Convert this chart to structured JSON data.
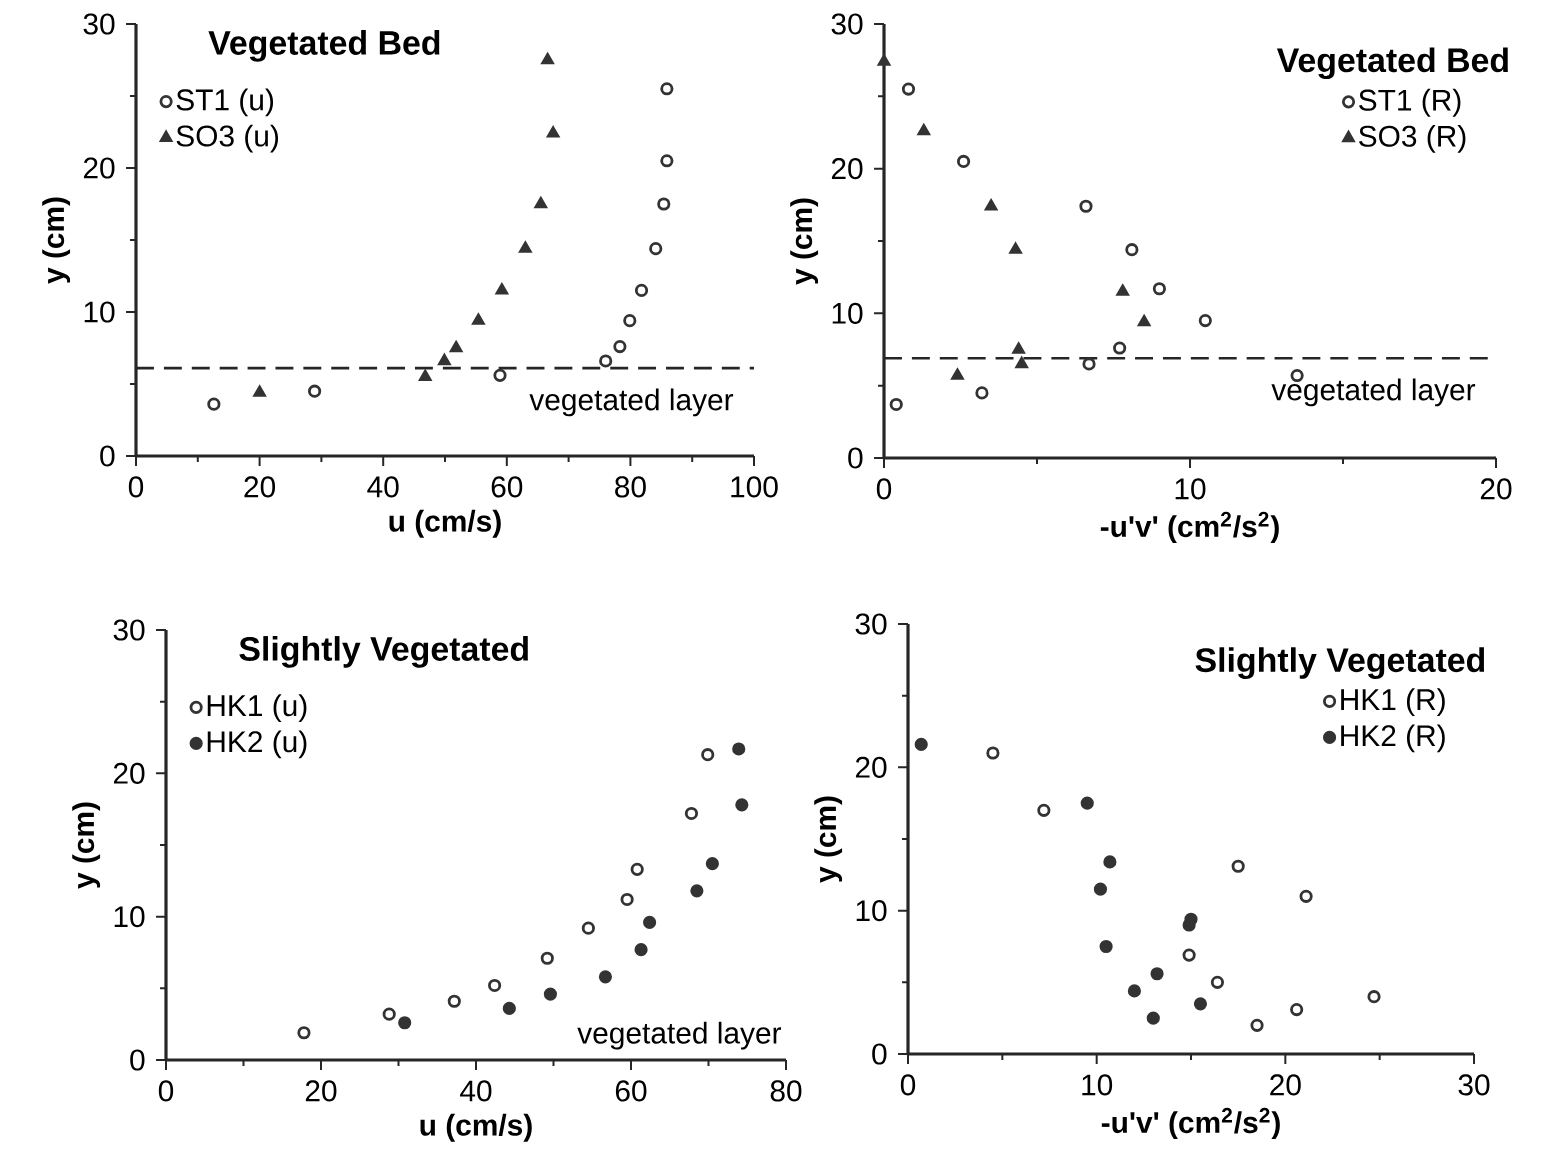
{
  "chart_data": [
    {
      "type": "scatter",
      "title": "Vegetated  Bed",
      "xlabel": "u  (cm/s)",
      "ylabel": "y (cm)",
      "xlim": [
        0,
        100
      ],
      "ylim": [
        0,
        30
      ],
      "xticks": [
        0,
        20,
        40,
        60,
        80,
        100
      ],
      "yticks": [
        0,
        10,
        20,
        30
      ],
      "legend": "top left",
      "grid": false,
      "ref_lines": [
        {
          "axis": "y",
          "value": 6.1,
          "label": "vegetated layer",
          "line_style": "dashed"
        }
      ],
      "series": [
        {
          "name": "ST1 (u)",
          "color": "#333333",
          "marker": "circle-open",
          "x": [
            12.6,
            28.9,
            58.9,
            76.0,
            78.3,
            79.9,
            81.8,
            84.1,
            85.4,
            85.9,
            85.9
          ],
          "values": [
            3.6,
            4.5,
            5.6,
            6.6,
            7.6,
            9.4,
            11.5,
            14.4,
            17.5,
            20.5,
            25.5
          ]
        },
        {
          "name": "SO3 (u)",
          "color": "#333333",
          "marker": "triangle",
          "x": [
            20.0,
            46.8,
            49.9,
            51.8,
            55.4,
            59.2,
            63.0,
            65.5,
            67.5,
            66.6
          ],
          "values": [
            4.4,
            5.5,
            6.6,
            7.5,
            9.4,
            11.5,
            14.4,
            17.5,
            22.4,
            27.5
          ]
        }
      ]
    },
    {
      "type": "scatter",
      "title": "Vegetated  Bed",
      "xlabel": "-u'v'  (cm$^{2}$/s$^{2}$)",
      "ylabel": "y (cm)",
      "xlim": [
        0,
        20
      ],
      "ylim": [
        0,
        30
      ],
      "xticks": [
        0,
        10,
        20
      ],
      "yticks": [
        0,
        10,
        20,
        30
      ],
      "legend": "top right",
      "grid": false,
      "ref_lines": [
        {
          "axis": "y",
          "value": 6.9,
          "label": "vegetated layer",
          "line_style": "dashed"
        }
      ],
      "series": [
        {
          "name": "ST1 (R)",
          "color": "#333333",
          "marker": "circle-open",
          "x": [
            0.4,
            0.8,
            2.6,
            3.2,
            6.6,
            6.7,
            7.7,
            8.1,
            9.0,
            10.5,
            13.5
          ],
          "values": [
            3.7,
            25.5,
            20.5,
            4.5,
            17.4,
            6.5,
            7.6,
            14.4,
            11.7,
            9.5,
            5.7
          ]
        },
        {
          "name": "SO3 (R)",
          "color": "#333333",
          "marker": "triangle",
          "x": [
            0.0,
            1.3,
            2.4,
            3.5,
            4.3,
            4.4,
            4.5,
            7.8,
            8.5
          ],
          "values": [
            27.4,
            22.6,
            5.7,
            17.4,
            14.4,
            7.5,
            6.5,
            11.5,
            9.4
          ]
        }
      ]
    },
    {
      "type": "scatter",
      "title": "Slightly  Vegetated",
      "xlabel": "u   (cm/s)",
      "ylabel": "y (cm)",
      "xlim": [
        0,
        80
      ],
      "ylim": [
        0,
        30
      ],
      "xticks": [
        0,
        20,
        40,
        60,
        80
      ],
      "yticks": [
        0,
        10,
        20,
        30
      ],
      "legend": "top left",
      "grid": false,
      "annotations": [
        "vegetated layer"
      ],
      "series": [
        {
          "name": "HK1 (u)",
          "color": "#333333",
          "marker": "circle-open",
          "x": [
            17.8,
            28.8,
            37.2,
            42.4,
            49.2,
            54.5,
            59.5,
            60.8,
            67.8,
            69.9
          ],
          "values": [
            1.9,
            3.2,
            4.1,
            5.2,
            7.1,
            9.2,
            11.2,
            13.3,
            17.2,
            21.3
          ]
        },
        {
          "name": "HK2 (u)",
          "color": "#333333",
          "marker": "circle",
          "x": [
            30.8,
            44.3,
            49.6,
            56.7,
            61.3,
            62.4,
            68.5,
            70.5,
            74.3,
            73.9
          ],
          "values": [
            2.6,
            3.6,
            4.6,
            5.8,
            7.7,
            9.6,
            11.8,
            13.7,
            17.8,
            21.7
          ]
        }
      ]
    },
    {
      "type": "scatter",
      "title": "Slightly  Vegetated",
      "xlabel": "-u'v'  (cm$^{2}$/s$^{2}$)",
      "ylabel": "y (cm)",
      "xlim": [
        0,
        30
      ],
      "ylim": [
        0,
        30
      ],
      "xticks": [
        0,
        10,
        20,
        30
      ],
      "yticks": [
        0,
        10,
        20,
        30
      ],
      "legend": "top right",
      "grid": false,
      "series": [
        {
          "name": "HK1 (R)",
          "color": "#333333",
          "marker": "circle-open",
          "x": [
            4.5,
            7.2,
            14.9,
            16.4,
            17.5,
            18.5,
            20.6,
            21.1,
            24.7
          ],
          "values": [
            21.0,
            17.0,
            6.9,
            5.0,
            13.1,
            2.0,
            3.1,
            11.0,
            4.0
          ]
        },
        {
          "name": "HK2 (R)",
          "color": "#333333",
          "marker": "circle",
          "x": [
            0.7,
            9.5,
            10.7,
            10.2,
            10.5,
            12.0,
            13.2,
            13.0,
            14.9,
            15.0,
            15.5
          ],
          "values": [
            21.6,
            17.5,
            13.4,
            11.5,
            7.5,
            4.4,
            5.6,
            2.5,
            9.0,
            9.4,
            3.5
          ]
        }
      ]
    }
  ]
}
